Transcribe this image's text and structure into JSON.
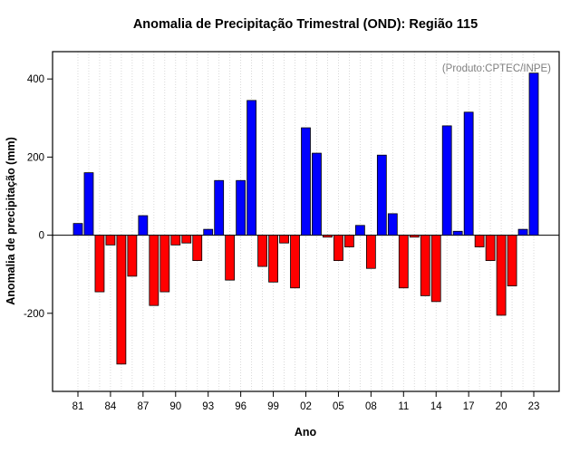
{
  "page": {
    "title": "Anomalia de Precipitação Trimestral (OND): Região 115"
  },
  "chart_data": {
    "type": "bar",
    "title": "Anomalia de Precipitação Trimestral (OND): Região 115",
    "annotation": "(Produto:CPTEC/INPE)",
    "xlabel": "Ano",
    "ylabel": "Anomalia de precipitação (mm)",
    "ylim": [
      -400,
      470
    ],
    "yticks": [
      -200,
      0,
      200,
      400
    ],
    "x_tick_label_every": 3,
    "grid": "dotted-vertical",
    "legend": "none",
    "colors": {
      "positive": "#0000FF",
      "negative": "#FF0000",
      "bar_border": "#000000",
      "annotation_gray": "#7E7E7E"
    },
    "categories": [
      "81",
      "82",
      "83",
      "84",
      "85",
      "86",
      "87",
      "88",
      "89",
      "90",
      "91",
      "92",
      "93",
      "94",
      "95",
      "96",
      "97",
      "98",
      "99",
      "00",
      "01",
      "02",
      "03",
      "04",
      "05",
      "06",
      "07",
      "08",
      "09",
      "10",
      "11",
      "12",
      "13",
      "14",
      "15",
      "16",
      "17",
      "18",
      "19",
      "20",
      "21",
      "22",
      "23"
    ],
    "values": [
      30,
      160,
      -145,
      -25,
      -330,
      -105,
      50,
      -180,
      -145,
      -25,
      -20,
      -65,
      15,
      140,
      -115,
      140,
      345,
      -80,
      -120,
      -20,
      -135,
      275,
      210,
      -5,
      -65,
      -30,
      25,
      -85,
      205,
      55,
      -135,
      -5,
      -155,
      -170,
      280,
      10,
      315,
      -30,
      -65,
      -205,
      -130,
      15,
      415
    ]
  }
}
